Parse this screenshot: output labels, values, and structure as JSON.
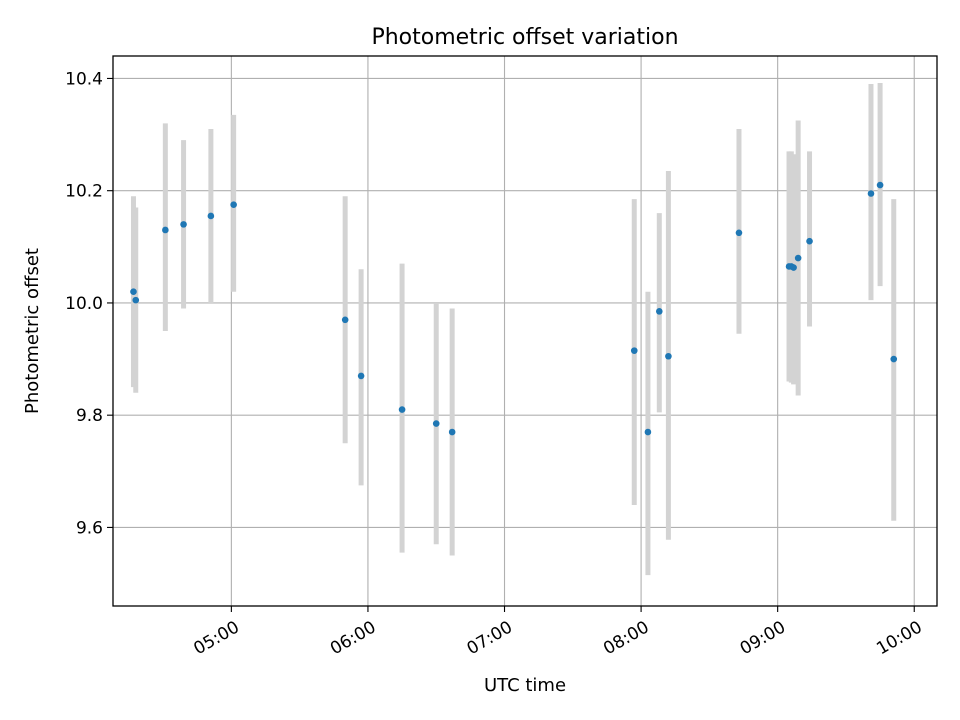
{
  "chart_data": {
    "type": "scatter",
    "title": "Photometric offset variation",
    "xlabel": "UTC time",
    "ylabel": "Photometric offset",
    "x_axis": "time",
    "xlim": [
      "04:08",
      "10:10"
    ],
    "ylim": [
      9.46,
      10.44
    ],
    "x_ticks": [
      "05:00",
      "06:00",
      "07:00",
      "08:00",
      "09:00",
      "10:00"
    ],
    "y_ticks": [
      9.6,
      9.8,
      10.0,
      10.2,
      10.4
    ],
    "grid": true,
    "legend": "none",
    "colors": {
      "point": "#1f77b4",
      "errorbar": "#d3d3d3",
      "grid": "#b0b0b0"
    },
    "points": [
      {
        "x": "04:17",
        "y": 10.02,
        "low": 9.85,
        "high": 10.19
      },
      {
        "x": "04:18",
        "y": 10.005,
        "low": 9.84,
        "high": 10.17
      },
      {
        "x": "04:31",
        "y": 10.13,
        "low": 9.95,
        "high": 10.32
      },
      {
        "x": "04:39",
        "y": 10.14,
        "low": 9.99,
        "high": 10.29
      },
      {
        "x": "04:51",
        "y": 10.155,
        "low": 10.0,
        "high": 10.31
      },
      {
        "x": "05:01",
        "y": 10.175,
        "low": 10.02,
        "high": 10.335
      },
      {
        "x": "05:50",
        "y": 9.97,
        "low": 9.75,
        "high": 10.19
      },
      {
        "x": "05:57",
        "y": 9.87,
        "low": 9.675,
        "high": 10.06
      },
      {
        "x": "06:15",
        "y": 9.81,
        "low": 9.555,
        "high": 10.07
      },
      {
        "x": "06:30",
        "y": 9.785,
        "low": 9.57,
        "high": 10.0
      },
      {
        "x": "06:37",
        "y": 9.77,
        "low": 9.55,
        "high": 9.99
      },
      {
        "x": "07:57",
        "y": 9.915,
        "low": 9.64,
        "high": 10.185
      },
      {
        "x": "08:03",
        "y": 9.77,
        "low": 9.515,
        "high": 10.02
      },
      {
        "x": "08:08",
        "y": 9.985,
        "low": 9.805,
        "high": 10.16
      },
      {
        "x": "08:12",
        "y": 9.905,
        "low": 9.578,
        "high": 10.235
      },
      {
        "x": "08:43",
        "y": 10.125,
        "low": 9.945,
        "high": 10.31
      },
      {
        "x": "09:05",
        "y": 10.065,
        "low": 9.86,
        "high": 10.27
      },
      {
        "x": "09:06",
        "y": 10.065,
        "low": 9.858,
        "high": 10.27
      },
      {
        "x": "09:07",
        "y": 10.063,
        "low": 9.855,
        "high": 10.265
      },
      {
        "x": "09:09",
        "y": 10.08,
        "low": 9.835,
        "high": 10.325
      },
      {
        "x": "09:14",
        "y": 10.11,
        "low": 9.958,
        "high": 10.27
      },
      {
        "x": "09:41",
        "y": 10.195,
        "low": 10.005,
        "high": 10.39
      },
      {
        "x": "09:45",
        "y": 10.21,
        "low": 10.03,
        "high": 10.392
      },
      {
        "x": "09:51",
        "y": 9.9,
        "low": 9.612,
        "high": 10.185
      }
    ]
  }
}
